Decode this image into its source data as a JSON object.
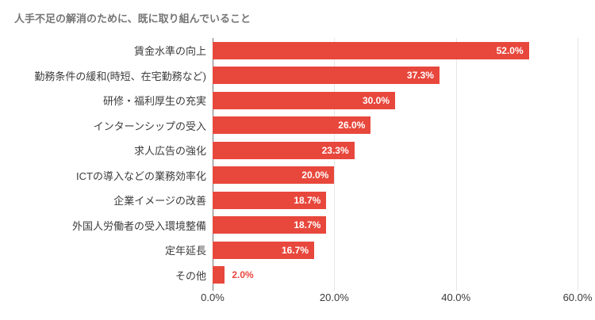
{
  "chart_data": {
    "type": "bar",
    "orientation": "horizontal",
    "title": "人手不足の解消のために、既に取り組んでいること",
    "categories": [
      "賃金水準の向上",
      "勤務条件の緩和(時短、在宅勤務など)",
      "研修・福利厚生の充実",
      "インターンシップの受入",
      "求人広告の強化",
      "ICTの導入などの業務効率化",
      "企業イメージの改善",
      "外国人労働者の受入環境整備",
      "定年延長",
      "その他"
    ],
    "values": [
      52.0,
      37.3,
      30.0,
      26.0,
      23.3,
      20.0,
      18.7,
      18.7,
      16.7,
      2.0
    ],
    "value_labels": [
      "52.0%",
      "37.3%",
      "30.0%",
      "26.0%",
      "23.3%",
      "20.0%",
      "18.7%",
      "18.7%",
      "16.7%",
      "2.0%"
    ],
    "xlabel": "",
    "ylabel": "",
    "xlim": [
      0,
      60
    ],
    "x_ticks": [
      {
        "value": 0,
        "label": "0.0%"
      },
      {
        "value": 20,
        "label": "20.0%"
      },
      {
        "value": 40,
        "label": "40.0%"
      },
      {
        "value": 60,
        "label": "60.0%"
      }
    ],
    "grid": true,
    "legend": "none",
    "colors": {
      "bar": "#e8473c",
      "title_text": "#757575",
      "category_text": "#3c3c3c",
      "axis_text": "#3a3a3a",
      "gridline": "#e6e6e6",
      "axis_line": "#757575",
      "value_inside": "#ffffff",
      "value_outside": "#e8473c"
    }
  }
}
